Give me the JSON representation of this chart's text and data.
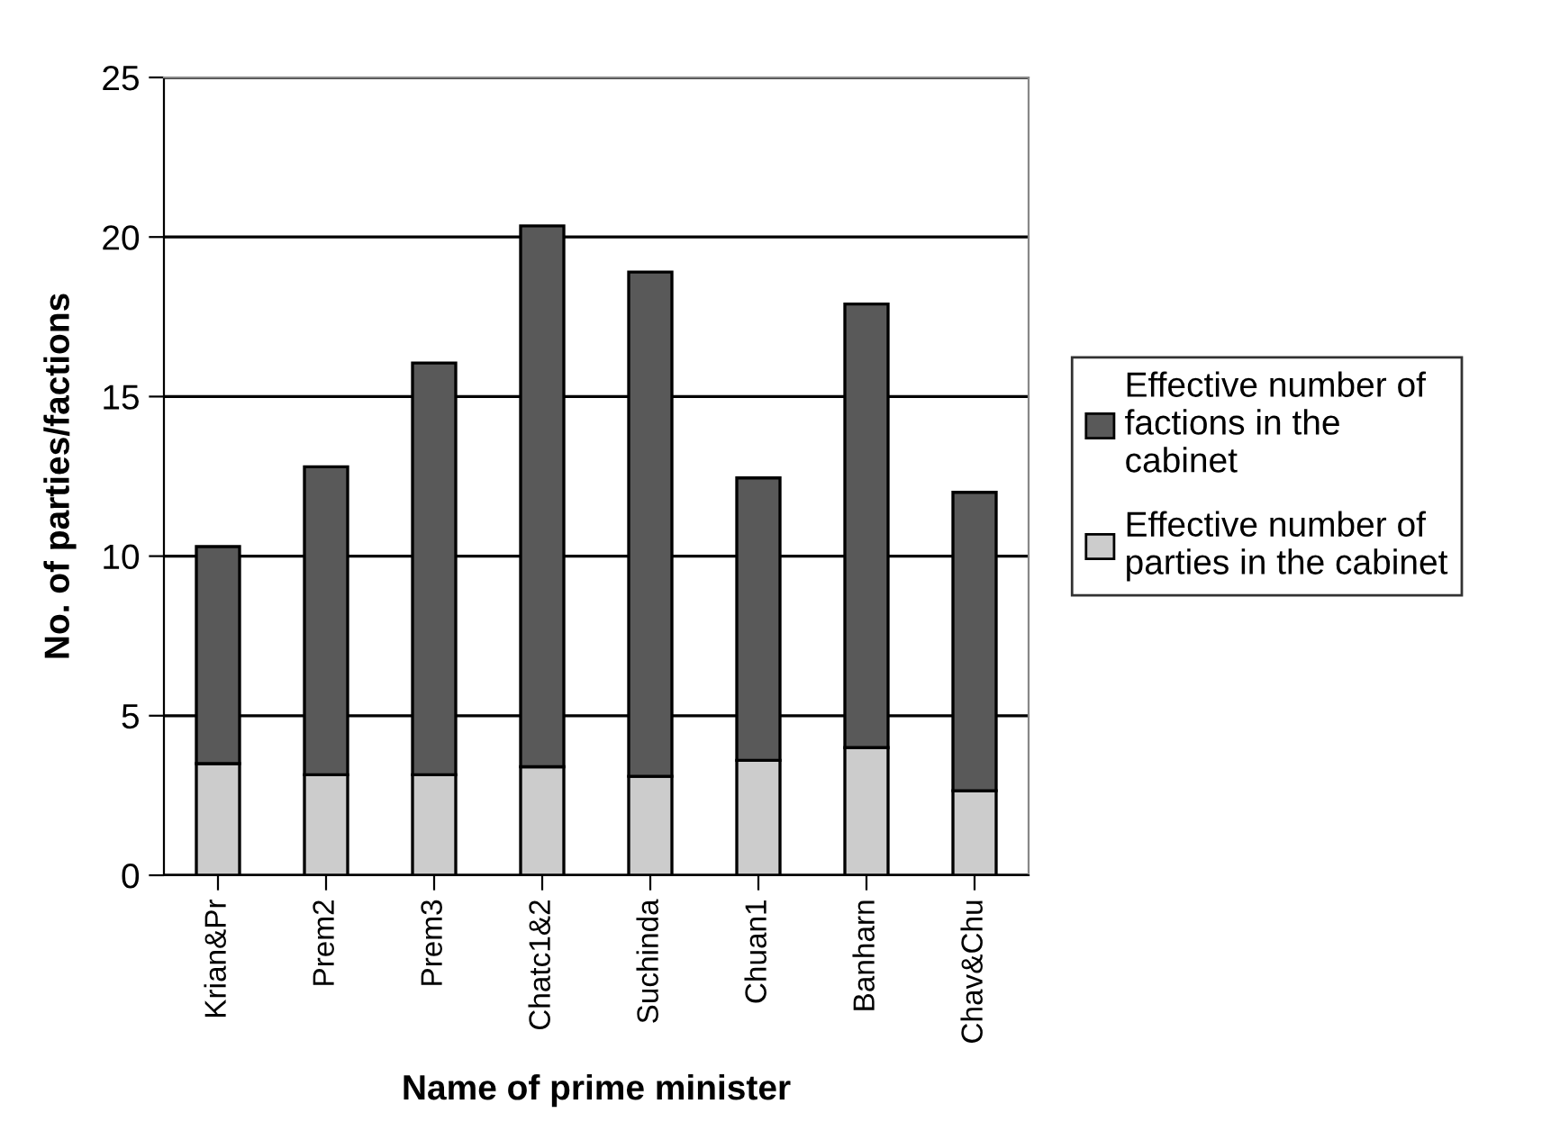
{
  "chart_data": {
    "type": "bar",
    "stacked": true,
    "xlabel": "Name of prime minister",
    "ylabel": "No. of parties/factions",
    "categories": [
      "Krian&Pr",
      "Prem2",
      "Prem3",
      "Chatc1&2",
      "Suchinda",
      "Chuan1",
      "Banharn",
      "Chav&Chu"
    ],
    "series": [
      {
        "name": "Effective number of parties in the cabinet",
        "color": "#cccccc",
        "values": [
          3.5,
          3.15,
          3.15,
          3.4,
          3.1,
          3.6,
          4.0,
          2.65
        ]
      },
      {
        "name": "Effective number of factions in the cabinet",
        "color": "#595959",
        "values": [
          6.8,
          9.65,
          12.9,
          16.95,
          15.8,
          8.85,
          13.9,
          9.35
        ]
      }
    ],
    "ylim": [
      0,
      25
    ],
    "yticks": [
      0,
      5,
      10,
      15,
      20,
      25
    ],
    "grid": "y",
    "legend": "right"
  }
}
